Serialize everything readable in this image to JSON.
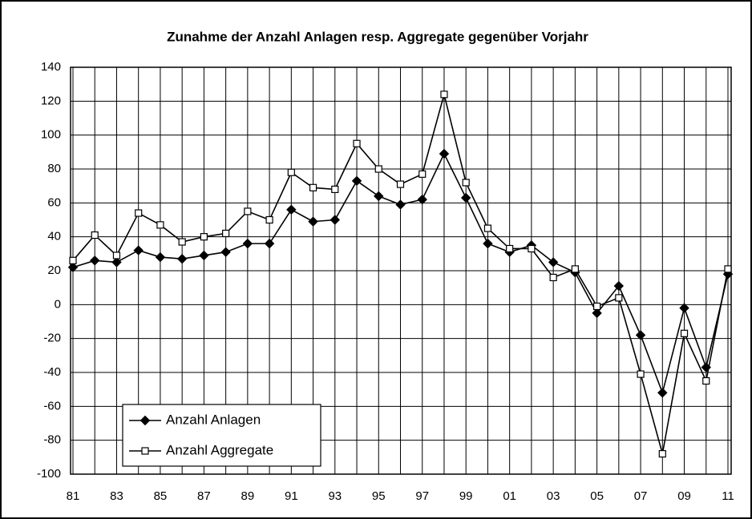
{
  "chart_data": {
    "type": "line",
    "title": "Zunahme der Anzahl Anlagen resp. Aggregate gegenüber Vorjahr",
    "categories": [
      "81",
      null,
      "83",
      null,
      "85",
      null,
      "87",
      null,
      "89",
      null,
      "91",
      null,
      "93",
      null,
      "95",
      null,
      "97",
      null,
      "99",
      null,
      "01",
      null,
      "03",
      null,
      "05",
      null,
      "07",
      null,
      "09",
      null,
      "11"
    ],
    "series": [
      {
        "name": "Anzahl Anlagen",
        "color": "#000000",
        "marker": "diamond",
        "values": [
          22,
          26,
          25,
          32,
          28,
          27,
          29,
          31,
          36,
          36,
          56,
          49,
          50,
          73,
          64,
          59,
          62,
          89,
          63,
          36,
          31,
          35,
          25,
          19,
          -5,
          11,
          -18,
          -52,
          -2,
          -37,
          18
        ]
      },
      {
        "name": "Anzahl Aggregate",
        "color": "#000000",
        "marker": "square",
        "values": [
          26,
          41,
          29,
          54,
          47,
          37,
          40,
          42,
          55,
          50,
          78,
          69,
          68,
          95,
          80,
          71,
          77,
          124,
          72,
          45,
          33,
          33,
          16,
          21,
          -1,
          4,
          -41,
          -88,
          -17,
          -45,
          21
        ]
      }
    ],
    "ylim": [
      -100,
      140
    ],
    "yticks": [
      -100,
      -80,
      -60,
      -40,
      -20,
      0,
      20,
      40,
      60,
      80,
      100,
      120,
      140
    ],
    "grid": true,
    "legend": "lower left"
  }
}
